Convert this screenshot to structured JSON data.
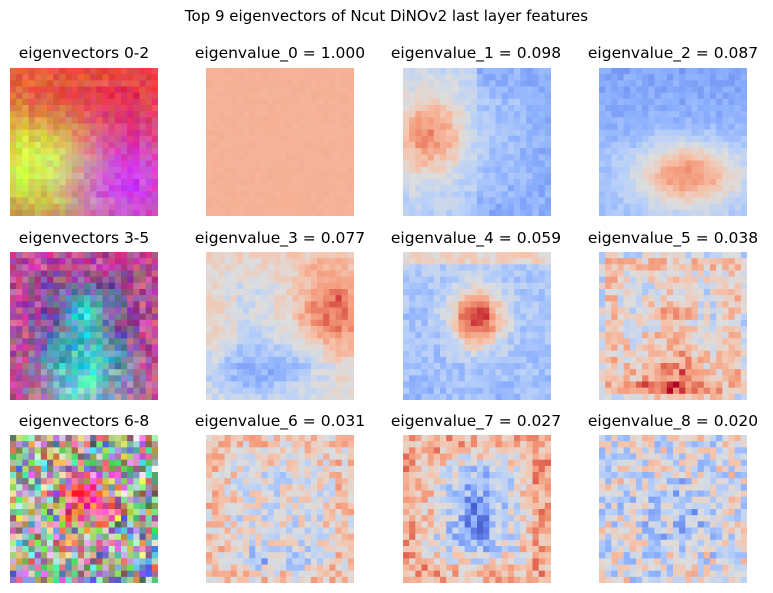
{
  "chart_data": {
    "type": "heatmap",
    "title": "Top 9 eigenvectors of Ncut DiNOv2 last layer features",
    "grid_resolution": 24,
    "colormap_rows": {
      "rgb_composites": [
        "eigenvectors 0-2",
        "eigenvectors 3-5",
        "eigenvectors 6-8"
      ],
      "single_colormap": "coolwarm"
    },
    "panels": [
      {
        "row": 0,
        "col": 0,
        "title": "eigenvectors 0-2",
        "kind": "rgb"
      },
      {
        "row": 0,
        "col": 1,
        "title": "eigenvalue_0 = 1.000",
        "kind": "eig",
        "index": 0,
        "eigenvalue": 1.0
      },
      {
        "row": 0,
        "col": 2,
        "title": "eigenvalue_1 = 0.098",
        "kind": "eig",
        "index": 1,
        "eigenvalue": 0.098
      },
      {
        "row": 0,
        "col": 3,
        "title": "eigenvalue_2 = 0.087",
        "kind": "eig",
        "index": 2,
        "eigenvalue": 0.087
      },
      {
        "row": 1,
        "col": 0,
        "title": "eigenvectors 3-5",
        "kind": "rgb"
      },
      {
        "row": 1,
        "col": 1,
        "title": "eigenvalue_3 = 0.077",
        "kind": "eig",
        "index": 3,
        "eigenvalue": 0.077
      },
      {
        "row": 1,
        "col": 2,
        "title": "eigenvalue_4 = 0.059",
        "kind": "eig",
        "index": 4,
        "eigenvalue": 0.059
      },
      {
        "row": 1,
        "col": 3,
        "title": "eigenvalue_5 = 0.038",
        "kind": "eig",
        "index": 5,
        "eigenvalue": 0.038
      },
      {
        "row": 2,
        "col": 0,
        "title": "eigenvectors 6-8",
        "kind": "rgb"
      },
      {
        "row": 2,
        "col": 1,
        "title": "eigenvalue_6 = 0.031",
        "kind": "eig",
        "index": 6,
        "eigenvalue": 0.031
      },
      {
        "row": 2,
        "col": 2,
        "title": "eigenvalue_7 = 0.027",
        "kind": "eig",
        "index": 7,
        "eigenvalue": 0.027
      },
      {
        "row": 2,
        "col": 3,
        "title": "eigenvalue_8 = 0.020",
        "kind": "eig",
        "index": 8,
        "eigenvalue": 0.02
      }
    ]
  }
}
